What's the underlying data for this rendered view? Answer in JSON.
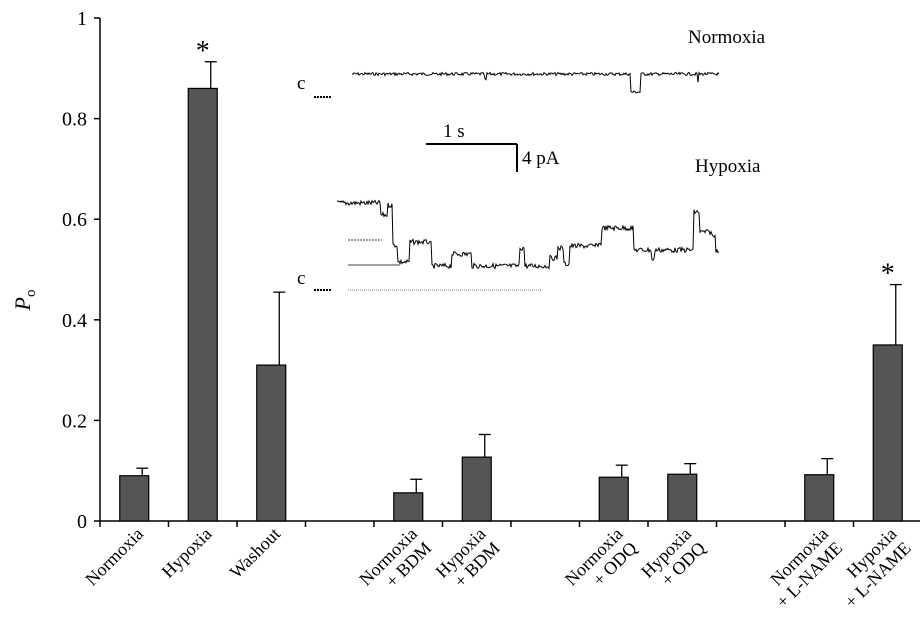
{
  "chart_data": {
    "type": "bar",
    "ylabel": "P",
    "ylabel_subscript": "o",
    "ylim": [
      0,
      1
    ],
    "yticks": [
      0,
      0.2,
      0.4,
      0.6,
      0.8,
      1
    ],
    "ytick_labels": [
      "0",
      "0.2",
      "0.4",
      "0.6",
      "0.8",
      "1"
    ],
    "grid": false,
    "legend": "none",
    "bar_color": "#555555",
    "categories": [
      {
        "lines": [
          "Normoxia"
        ],
        "value": 0.09,
        "error": 0.015,
        "significant": false
      },
      {
        "lines": [
          "Hypoxia"
        ],
        "value": 0.86,
        "error": 0.053,
        "significant": true
      },
      {
        "lines": [
          "Washout"
        ],
        "value": 0.31,
        "error": 0.145,
        "significant": false
      },
      {
        "lines": [],
        "value": null,
        "error": null,
        "significant": false
      },
      {
        "lines": [
          "Normoxia",
          "+ BDM"
        ],
        "value": 0.056,
        "error": 0.027,
        "significant": false
      },
      {
        "lines": [
          "Hypoxia",
          "+ BDM"
        ],
        "value": 0.127,
        "error": 0.045,
        "significant": false
      },
      {
        "lines": [],
        "value": null,
        "error": null,
        "significant": false
      },
      {
        "lines": [
          "Normoxia",
          "+ ODQ"
        ],
        "value": 0.087,
        "error": 0.024,
        "significant": false
      },
      {
        "lines": [
          "Hypoxia",
          "+ ODQ"
        ],
        "value": 0.093,
        "error": 0.021,
        "significant": false
      },
      {
        "lines": [],
        "value": null,
        "error": null,
        "significant": false
      },
      {
        "lines": [
          "Normoxia",
          "+ L-NAME"
        ],
        "value": 0.092,
        "error": 0.032,
        "significant": false
      },
      {
        "lines": [
          "Hypoxia",
          "+ L-NAME"
        ],
        "value": 0.35,
        "error": 0.12,
        "significant": true
      }
    ],
    "significance_marker": "*",
    "inset": {
      "normoxia_label": "Normoxia",
      "hypoxia_label": "Hypoxia",
      "closed_label_1": "c",
      "closed_label_2": "c",
      "time_scale": "1 s",
      "current_scale": "4 pA"
    }
  }
}
